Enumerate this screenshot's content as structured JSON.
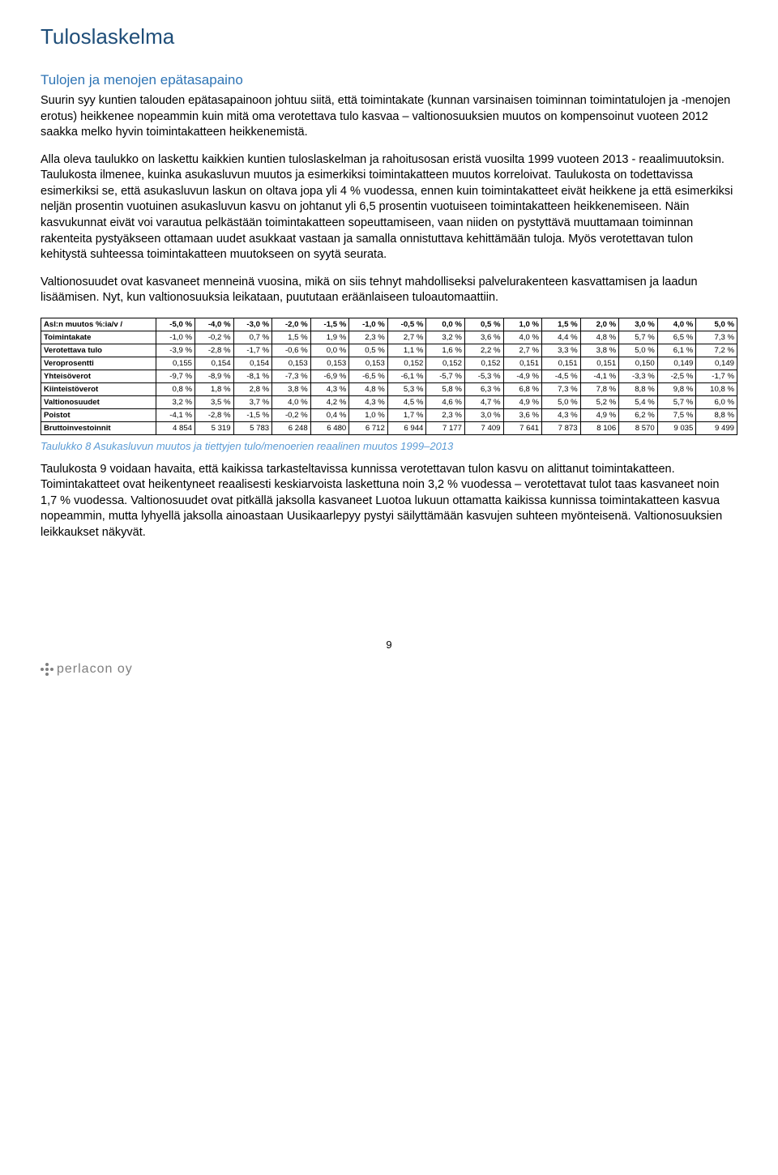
{
  "title": "Tuloslaskelma",
  "subheading": "Tulojen ja menojen epätasapaino",
  "p1": "Suurin syy kuntien talouden epätasapainoon johtuu siitä, että toimintakate (kunnan varsinaisen toiminnan toimintatulojen ja -menojen erotus) heikkenee nopeammin kuin mitä oma verotettava tulo kasvaa – valtionosuuksien muutos on kompensoinut vuoteen 2012 saakka melko hyvin toimintakatteen heikkenemistä.",
  "p2": "Alla oleva taulukko on laskettu kaikkien kuntien tuloslaskelman ja rahoitusosan eristä vuosilta 1999 vuoteen 2013 - reaalimuutoksin. Taulukosta ilmenee, kuinka asukasluvun muutos ja esimerkiksi toimintakatteen muutos korreloivat. Taulukosta on todettavissa esimerkiksi se, että asukasluvun laskun on oltava jopa yli 4 % vuodessa, ennen kuin toimintakatteet eivät heikkene ja että esimerkiksi neljän prosentin vuotuinen asukasluvun kasvu on johtanut yli 6,5 prosentin vuotuiseen toimintakatteen heikkenemiseen. Näin kasvukunnat eivät voi varautua pelkästään toimintakatteen sopeuttamiseen, vaan niiden on pystyttävä muuttamaan toiminnan rakenteita pystyäkseen ottamaan uudet asukkaat vastaan ja samalla onnistuttava kehittämään tuloja. Myös verotettavan tulon kehitystä suhteessa toimintakatteen muutokseen on syytä seurata.",
  "p3": "Valtionosuudet ovat kasvaneet menneinä vuosina, mikä on siis tehnyt mahdolliseksi palvelurakenteen kasvattamisen ja laadun lisäämisen. Nyt, kun valtionosuuksia leikataan, puututaan eräänlaiseen tuloautomaattiin.",
  "table": {
    "header_first": "Asl:n muutos %:ia/v /",
    "columns": [
      "-5,0 %",
      "-4,0 %",
      "-3,0 %",
      "-2,0 %",
      "-1,5 %",
      "-1,0 %",
      "-0,5 %",
      "0,0 %",
      "0,5 %",
      "1,0 %",
      "1,5 %",
      "2,0 %",
      "3,0 %",
      "4,0 %",
      "5,0 %"
    ],
    "rows": [
      {
        "label": "Toimintakate",
        "cells": [
          "-1,0 %",
          "-0,2 %",
          "0,7 %",
          "1,5 %",
          "1,9 %",
          "2,3 %",
          "2,7 %",
          "3,2 %",
          "3,6 %",
          "4,0 %",
          "4,4 %",
          "4,8 %",
          "5,7 %",
          "6,5 %",
          "7,3 %"
        ]
      },
      {
        "label": "Verotettava tulo",
        "cells": [
          "-3,9 %",
          "-2,8 %",
          "-1,7 %",
          "-0,6 %",
          "0,0 %",
          "0,5 %",
          "1,1 %",
          "1,6 %",
          "2,2 %",
          "2,7 %",
          "3,3 %",
          "3,8 %",
          "5,0 %",
          "6,1 %",
          "7,2 %"
        ]
      },
      {
        "label": "Veroprosentti",
        "cells": [
          "0,155",
          "0,154",
          "0,154",
          "0,153",
          "0,153",
          "0,153",
          "0,152",
          "0,152",
          "0,152",
          "0,151",
          "0,151",
          "0,151",
          "0,150",
          "0,149",
          "0,149"
        ]
      },
      {
        "label": "Yhteisöverot",
        "cells": [
          "-9,7 %",
          "-8,9 %",
          "-8,1 %",
          "-7,3 %",
          "-6,9 %",
          "-6,5 %",
          "-6,1 %",
          "-5,7 %",
          "-5,3 %",
          "-4,9 %",
          "-4,5 %",
          "-4,1 %",
          "-3,3 %",
          "-2,5 %",
          "-1,7 %"
        ]
      },
      {
        "label": "Kiinteistöverot",
        "cells": [
          "0,8 %",
          "1,8 %",
          "2,8 %",
          "3,8 %",
          "4,3 %",
          "4,8 %",
          "5,3 %",
          "5,8 %",
          "6,3 %",
          "6,8 %",
          "7,3 %",
          "7,8 %",
          "8,8 %",
          "9,8 %",
          "10,8 %"
        ]
      },
      {
        "label": "Valtionosuudet",
        "cells": [
          "3,2 %",
          "3,5 %",
          "3,7 %",
          "4,0 %",
          "4,2 %",
          "4,3 %",
          "4,5 %",
          "4,6 %",
          "4,7 %",
          "4,9 %",
          "5,0 %",
          "5,2 %",
          "5,4 %",
          "5,7 %",
          "6,0 %"
        ]
      },
      {
        "label": "Poistot",
        "cells": [
          "-4,1 %",
          "-2,8 %",
          "-1,5 %",
          "-0,2 %",
          "0,4 %",
          "1,0 %",
          "1,7 %",
          "2,3 %",
          "3,0 %",
          "3,6 %",
          "4,3 %",
          "4,9 %",
          "6,2 %",
          "7,5 %",
          "8,8 %"
        ]
      },
      {
        "label": "Bruttoinvestoinnit",
        "cells": [
          "4 854",
          "5 319",
          "5 783",
          "6 248",
          "6 480",
          "6 712",
          "6 944",
          "7 177",
          "7 409",
          "7 641",
          "7 873",
          "8 106",
          "8 570",
          "9 035",
          "9 499"
        ]
      }
    ]
  },
  "caption": "Taulukko 8 Asukasluvun muutos ja tiettyjen tulo/menoerien reaalinen muutos 1999–2013",
  "p4": "Taulukosta 9 voidaan havaita, että kaikissa tarkasteltavissa kunnissa verotettavan tulon kasvu on alittanut toimintakatteen. Toimintakatteet ovat heikentyneet reaalisesti keskiarvoista laskettuna noin 3,2 % vuodessa – verotettavat tulot taas kasvaneet noin 1,7 % vuodessa. Valtionosuudet ovat pitkällä jaksolla kasvaneet Luotoa lukuun ottamatta kaikissa kunnissa toimintakatteen kasvua nopeammin, mutta lyhyellä jaksolla ainoastaan Uusikaarlepyy pystyi säilyttämään kasvujen suhteen myönteisenä. Valtionosuuksien leikkaukset näkyvät.",
  "page_number": "9",
  "logo_text": "perlacon oy"
}
